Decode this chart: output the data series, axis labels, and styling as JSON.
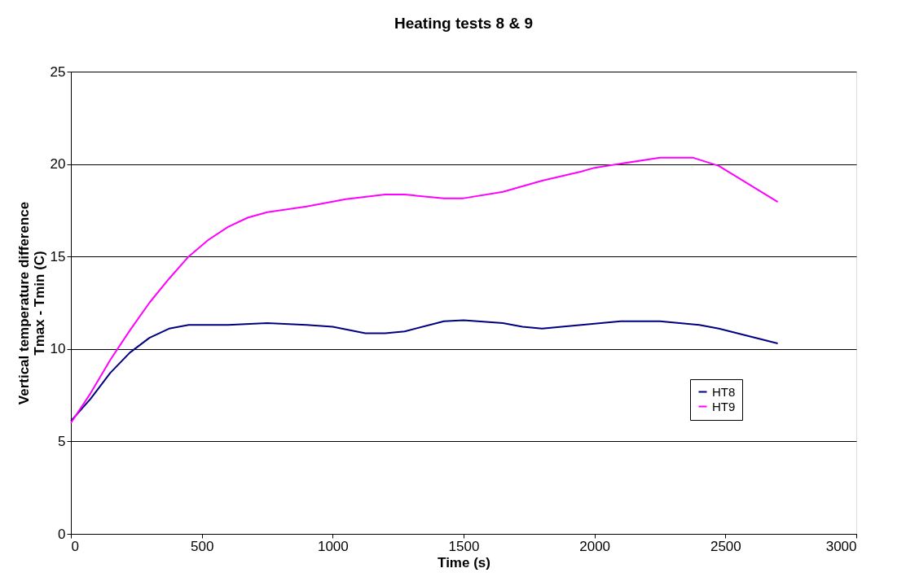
{
  "chart_data": {
    "type": "line",
    "title": "Heating tests 8 & 9",
    "xlabel": "Time (s)",
    "ylabel": "Vertical temperature difference\nTmax - Tmin (C)",
    "xlim": [
      0,
      3000
    ],
    "xticks": [
      0,
      500,
      1000,
      1500,
      2000,
      2500,
      3000
    ],
    "ylim": [
      0,
      25
    ],
    "yticks": [
      0,
      5,
      10,
      15,
      20,
      25
    ],
    "grid": "y",
    "legend": "bottom right",
    "marker": "none",
    "line_style": "solid",
    "series": [
      {
        "name": "HT8",
        "color": "#000080",
        "x": [
          0,
          75,
          150,
          225,
          300,
          375,
          450,
          600,
          750,
          900,
          1000,
          1125,
          1200,
          1275,
          1425,
          1500,
          1650,
          1725,
          1800,
          2100,
          2250,
          2400,
          2475,
          2700
        ],
        "values": [
          6.1,
          7.3,
          8.7,
          9.8,
          10.6,
          11.1,
          11.3,
          11.3,
          11.4,
          11.3,
          11.2,
          10.85,
          10.85,
          10.95,
          11.5,
          11.55,
          11.4,
          11.2,
          11.1,
          11.5,
          11.5,
          11.3,
          11.1,
          10.3
        ]
      },
      {
        "name": "HT9",
        "color": "#ff00ff",
        "x": [
          0,
          75,
          150,
          225,
          300,
          375,
          450,
          525,
          600,
          675,
          750,
          900,
          1050,
          1200,
          1275,
          1425,
          1500,
          1650,
          1800,
          1950,
          2000,
          2250,
          2375,
          2475,
          2700
        ],
        "values": [
          6.0,
          7.6,
          9.4,
          11.0,
          12.5,
          13.8,
          15.0,
          15.9,
          16.6,
          17.1,
          17.4,
          17.7,
          18.1,
          18.35,
          18.35,
          18.15,
          18.15,
          18.5,
          19.1,
          19.6,
          19.8,
          20.35,
          20.35,
          19.9,
          17.95
        ]
      }
    ]
  }
}
